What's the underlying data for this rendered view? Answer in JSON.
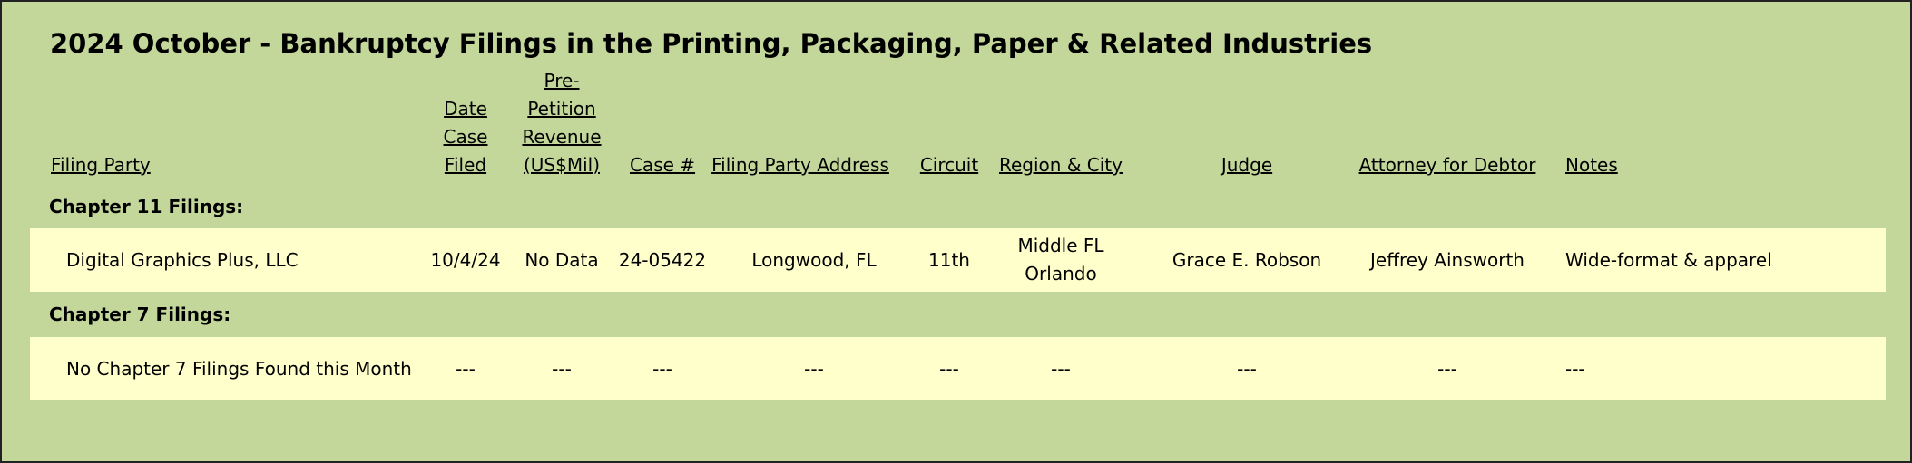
{
  "title": "2024 October - Bankruptcy Filings in the Printing, Packaging, Paper & Related Industries",
  "columns": [
    "Filing Party",
    "Date\nCase\nFiled",
    "Pre-\nPetition\nRevenue\n(US$Mil)",
    "Case #",
    "Filing Party Address",
    "Circuit",
    "Region & City",
    "Judge",
    "Attorney for Debtor",
    "Notes"
  ],
  "sections": [
    {
      "label": "Chapter 11 Filings:",
      "rows": [
        [
          "Digital Graphics Plus, LLC",
          "10/4/24",
          "No Data",
          "24-05422",
          "Longwood, FL",
          "11th",
          "Middle FL\nOrlando",
          "Grace E. Robson",
          "Jeffrey Ainsworth",
          "Wide-format & apparel"
        ]
      ]
    },
    {
      "label": "Chapter 7 Filings:",
      "rows": [
        [
          "No Chapter 7 Filings Found this Month",
          "---",
          "---",
          "---",
          "---",
          "---",
          "---",
          "---",
          "---",
          "---"
        ]
      ]
    }
  ]
}
